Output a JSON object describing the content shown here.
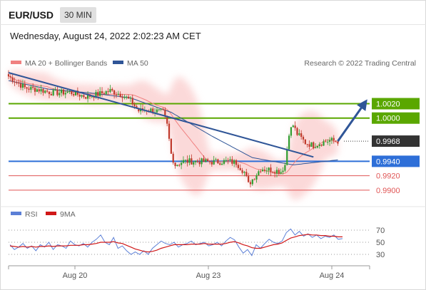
{
  "header": {
    "symbol": "EUR/USD",
    "interval": "30 MIN",
    "timestamp": "Wednesday, August 24, 2022 2:02:23 AM CET"
  },
  "colors": {
    "bollinger": "#f08080",
    "ma50": "#2f5597",
    "resistance": "#5aa700",
    "pivot": "#2e6fd8",
    "support": "#e05555",
    "bull": "#2f9e2f",
    "bear": "#c0392b",
    "rsi": "#5b7fd6",
    "rsi_ma": "#d01818"
  },
  "chart_data": [
    {
      "type": "line",
      "panel": "price",
      "symbol": "EUR/USD",
      "timeframe": "30 MIN",
      "legend": [
        "MA 20 + Bollinger Bands",
        "MA 50"
      ],
      "credit": "Research © 2022 Trading Central",
      "x_ticks": [
        "Aug 20",
        "Aug 23",
        "Aug 24"
      ],
      "ylim": [
        0.9885,
        1.0065
      ],
      "levels": [
        {
          "label": "1.0020",
          "value": 1.002,
          "kind": "resistance"
        },
        {
          "label": "1.0000",
          "value": 1.0,
          "kind": "resistance"
        },
        {
          "label": "0.9968",
          "value": 0.9968,
          "kind": "last"
        },
        {
          "label": "0.9940",
          "value": 0.994,
          "kind": "pivot"
        },
        {
          "label": "0.9920",
          "value": 0.992,
          "kind": "support"
        },
        {
          "label": "0.9900",
          "value": 0.99,
          "kind": "support"
        }
      ],
      "close_anchors": [
        {
          "x": 0,
          "y": 1.0058
        },
        {
          "x": 4,
          "y": 1.005
        },
        {
          "x": 8,
          "y": 1.0042
        },
        {
          "x": 14,
          "y": 1.004
        },
        {
          "x": 22,
          "y": 1.0035
        },
        {
          "x": 30,
          "y": 1.0036
        },
        {
          "x": 38,
          "y": 1.003
        },
        {
          "x": 44,
          "y": 1.0033
        },
        {
          "x": 50,
          "y": 1.0038
        },
        {
          "x": 56,
          "y": 1.0032
        },
        {
          "x": 60,
          "y": 1.0024
        },
        {
          "x": 64,
          "y": 1.001
        },
        {
          "x": 68,
          "y": 1.0012
        },
        {
          "x": 72,
          "y": 1.001
        },
        {
          "x": 76,
          "y": 1.0008
        },
        {
          "x": 78,
          "y": 0.999
        },
        {
          "x": 80,
          "y": 0.995
        },
        {
          "x": 82,
          "y": 0.9935
        },
        {
          "x": 86,
          "y": 0.994
        },
        {
          "x": 92,
          "y": 0.994
        },
        {
          "x": 100,
          "y": 0.9939
        },
        {
          "x": 108,
          "y": 0.994
        },
        {
          "x": 112,
          "y": 0.9938
        },
        {
          "x": 116,
          "y": 0.9925
        },
        {
          "x": 118,
          "y": 0.9908
        },
        {
          "x": 120,
          "y": 0.9915
        },
        {
          "x": 124,
          "y": 0.993
        },
        {
          "x": 130,
          "y": 0.9928
        },
        {
          "x": 134,
          "y": 0.9926
        },
        {
          "x": 136,
          "y": 0.9935
        },
        {
          "x": 138,
          "y": 0.998
        },
        {
          "x": 140,
          "y": 0.999
        },
        {
          "x": 142,
          "y": 0.9978
        },
        {
          "x": 146,
          "y": 0.9966
        },
        {
          "x": 150,
          "y": 0.9962
        },
        {
          "x": 154,
          "y": 0.9966
        },
        {
          "x": 158,
          "y": 0.9969
        },
        {
          "x": 162,
          "y": 0.9968
        }
      ],
      "ma50_anchors": [
        {
          "x": 0,
          "y": 1.0052
        },
        {
          "x": 20,
          "y": 1.004
        },
        {
          "x": 40,
          "y": 1.0035
        },
        {
          "x": 60,
          "y": 1.0028
        },
        {
          "x": 80,
          "y": 1.0008
        },
        {
          "x": 100,
          "y": 0.9975
        },
        {
          "x": 120,
          "y": 0.9945
        },
        {
          "x": 140,
          "y": 0.9935
        },
        {
          "x": 162,
          "y": 0.9942
        }
      ],
      "trendline": {
        "from": {
          "x": 0,
          "y": 1.0063
        },
        "to": {
          "x": 150,
          "y": 0.9946
        }
      },
      "forecast_arrow": {
        "from": {
          "x": 162,
          "y": 0.9968
        },
        "to": {
          "x": 175,
          "y": 1.002
        }
      }
    },
    {
      "type": "line",
      "panel": "rsi",
      "legend": [
        "RSI",
        "9MA"
      ],
      "x_ticks": [
        "Aug 20",
        "Aug 23",
        "Aug 24"
      ],
      "y_ticks": [
        30,
        50,
        70
      ],
      "ylim": [
        15,
        85
      ],
      "series": [
        {
          "name": "RSI",
          "values": [
            46,
            38,
            42,
            48,
            40,
            44,
            36,
            46,
            42,
            50,
            38,
            46,
            44,
            40,
            52,
            46,
            44,
            48,
            42,
            50,
            55,
            62,
            50,
            46,
            58,
            40,
            44,
            36,
            30,
            34,
            30,
            36,
            30,
            40,
            46,
            52,
            48,
            46,
            50,
            42,
            46,
            48,
            52,
            46,
            48,
            50,
            44,
            46,
            50,
            44,
            52,
            58,
            54,
            42,
            32,
            38,
            28,
            46,
            40,
            48,
            55,
            50,
            48,
            52,
            66,
            72,
            62,
            68,
            60,
            64,
            58,
            62,
            56,
            60,
            58,
            62,
            55,
            56
          ]
        },
        {
          "name": "9MA",
          "values": [
            44,
            43,
            42,
            43,
            42,
            43,
            42,
            43,
            43,
            44,
            43,
            44,
            44,
            44,
            45,
            45,
            45,
            46,
            46,
            47,
            48,
            50,
            50,
            50,
            51,
            49,
            48,
            45,
            42,
            39,
            37,
            35,
            34,
            35,
            37,
            40,
            42,
            44,
            46,
            46,
            46,
            46,
            47,
            47,
            47,
            48,
            47,
            47,
            47,
            47,
            48,
            50,
            51,
            49,
            46,
            44,
            41,
            40,
            40,
            42,
            44,
            46,
            47,
            49,
            53,
            57,
            59,
            61,
            62,
            63,
            62,
            62,
            61,
            61,
            60,
            60,
            59,
            59
          ]
        }
      ]
    }
  ]
}
